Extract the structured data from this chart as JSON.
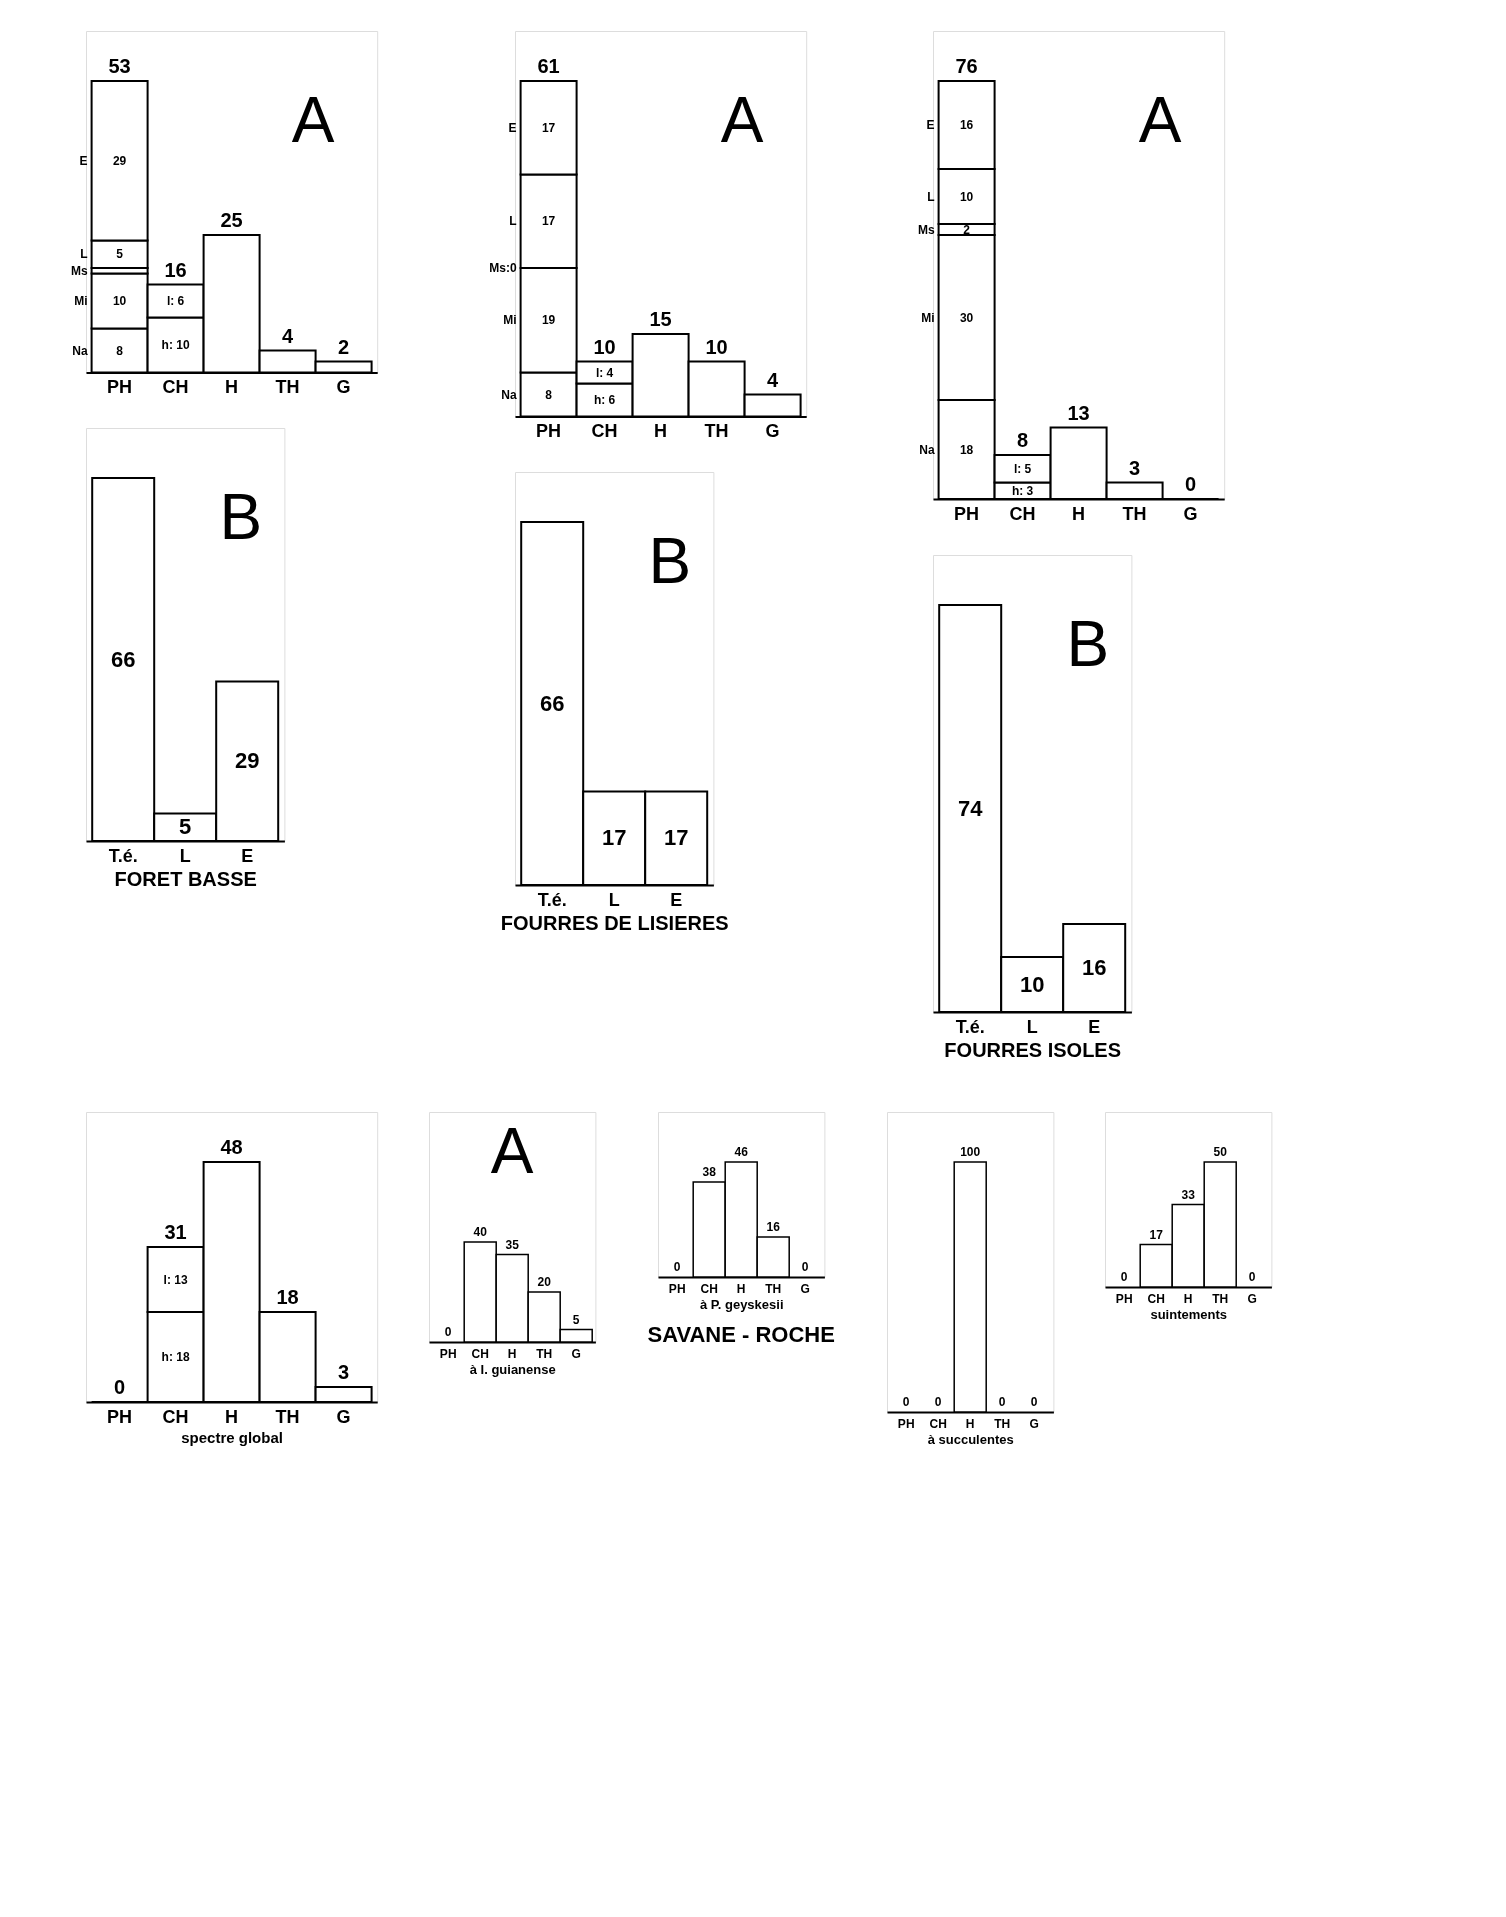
{
  "chart_data": [
    {
      "type": "bar",
      "stacked": true,
      "categories": [
        "PH",
        "CH",
        "H",
        "TH",
        "G"
      ],
      "annotations": [
        "A"
      ],
      "totals": [
        "53",
        "16",
        "25",
        "4",
        "2"
      ],
      "series": [
        {
          "name": "Na",
          "color": "#ffffff",
          "values": [
            8,
            null,
            null,
            null,
            null
          ],
          "value_labels": [
            "8",
            null,
            null,
            null,
            null
          ]
        },
        {
          "name": "Mi",
          "color": "#ffffff",
          "values": [
            10,
            null,
            null,
            null,
            null
          ],
          "value_labels": [
            "10",
            null,
            null,
            null,
            null
          ]
        },
        {
          "name": "Ms",
          "color": "#ffffff",
          "values": [
            1,
            null,
            null,
            null,
            null
          ]
        },
        {
          "name": "L",
          "color": "#ffffff",
          "values": [
            5,
            null,
            null,
            null,
            null
          ],
          "value_labels": [
            "5",
            null,
            null,
            null,
            null
          ]
        },
        {
          "name": "E",
          "color": "#ffffff",
          "values": [
            29,
            null,
            null,
            null,
            null
          ],
          "value_labels": [
            "29",
            null,
            null,
            null,
            null
          ]
        },
        {
          "color": "#ffffff",
          "values": [
            null,
            10,
            null,
            null,
            null
          ],
          "value_labels": [
            null,
            "h: 10",
            null,
            null,
            null
          ]
        },
        {
          "color": "#ffffff",
          "values": [
            null,
            6,
            null,
            null,
            null
          ],
          "value_labels": [
            null,
            "l: 6",
            null,
            null,
            null
          ]
        },
        {
          "color": "#ffffff",
          "values": [
            null,
            null,
            25,
            4,
            2
          ]
        }
      ]
    },
    {
      "type": "bar",
      "stacked": true,
      "categories": [
        "PH",
        "CH",
        "H",
        "TH",
        "G"
      ],
      "annotations": [
        "A"
      ],
      "totals": [
        "61",
        "10",
        "15",
        "10",
        "4"
      ],
      "series": [
        {
          "name": "Na",
          "color": "#ffffff",
          "values": [
            8,
            null,
            null,
            null,
            null
          ],
          "value_labels": [
            "8",
            null,
            null,
            null,
            null
          ]
        },
        {
          "name": "Mi",
          "color": "#ffffff",
          "values": [
            19,
            null,
            null,
            null,
            null
          ],
          "value_labels": [
            "19",
            null,
            null,
            null,
            null
          ]
        },
        {
          "name": "Ms:0",
          "values": [
            0,
            null,
            null,
            null,
            null
          ]
        },
        {
          "name": "L",
          "color": "#ffffff",
          "values": [
            17,
            null,
            null,
            null,
            null
          ],
          "value_labels": [
            "17",
            null,
            null,
            null,
            null
          ]
        },
        {
          "name": "E",
          "color": "#ffffff",
          "values": [
            17,
            null,
            null,
            null,
            null
          ],
          "value_labels": [
            "17",
            null,
            null,
            null,
            null
          ]
        },
        {
          "color": "#ffffff",
          "values": [
            null,
            6,
            null,
            null,
            null
          ],
          "value_labels": [
            null,
            "h: 6",
            null,
            null,
            null
          ]
        },
        {
          "color": "#ffffff",
          "values": [
            null,
            4,
            null,
            null,
            null
          ],
          "value_labels": [
            null,
            "l: 4",
            null,
            null,
            null
          ]
        },
        {
          "color": "#ffffff",
          "values": [
            null,
            null,
            15,
            10,
            4
          ]
        }
      ]
    },
    {
      "type": "bar",
      "stacked": true,
      "categories": [
        "PH",
        "CH",
        "H",
        "TH",
        "G"
      ],
      "annotations": [
        "A"
      ],
      "totals": [
        "76",
        "8",
        "13",
        "3",
        "0"
      ],
      "series": [
        {
          "name": "Na",
          "color": "#ffffff",
          "values": [
            18,
            null,
            null,
            null,
            null
          ],
          "value_labels": [
            "18",
            null,
            null,
            null,
            null
          ]
        },
        {
          "name": "Mi",
          "color": "#ffffff",
          "values": [
            30,
            null,
            null,
            null,
            null
          ],
          "value_labels": [
            "30",
            null,
            null,
            null,
            null
          ]
        },
        {
          "name": "Ms",
          "color": "#ffffff",
          "values": [
            2,
            null,
            null,
            null,
            null
          ],
          "value_labels": [
            "2",
            null,
            null,
            null,
            null
          ]
        },
        {
          "name": "L",
          "color": "#ffffff",
          "values": [
            10,
            null,
            null,
            null,
            null
          ],
          "value_labels": [
            "10",
            null,
            null,
            null,
            null
          ]
        },
        {
          "name": "E",
          "color": "#ffffff",
          "values": [
            16,
            null,
            null,
            null,
            null
          ],
          "value_labels": [
            "16",
            null,
            null,
            null,
            null
          ]
        },
        {
          "color": "#ffffff",
          "values": [
            null,
            3,
            null,
            null,
            null
          ],
          "value_labels": [
            null,
            "h: 3",
            null,
            null,
            null
          ]
        },
        {
          "color": "#ffffff",
          "values": [
            null,
            5,
            null,
            null,
            null
          ],
          "value_labels": [
            null,
            "l: 5",
            null,
            null,
            null
          ]
        },
        {
          "color": "#ffffff",
          "values": [
            null,
            null,
            13,
            3,
            0
          ]
        }
      ]
    },
    {
      "type": "bar",
      "categories": [
        "T.é.",
        "L",
        "E"
      ],
      "values": [
        66,
        5,
        29
      ],
      "colors": [
        "#ffffff",
        "#ffffff",
        "#ffffff"
      ],
      "data_labels": true,
      "xlabel": "FORET BASSE",
      "annotations": [
        "B"
      ]
    },
    {
      "type": "bar",
      "categories": [
        "T.é.",
        "L",
        "E"
      ],
      "values": [
        66,
        17,
        17
      ],
      "colors": [
        "#ffffff",
        "#ffffff",
        "#ffffff"
      ],
      "data_labels": true,
      "xlabel": "FOURRES DE LISIERES",
      "annotations": [
        "B"
      ]
    },
    {
      "type": "bar",
      "categories": [
        "T.é.",
        "L",
        "E"
      ],
      "values": [
        74,
        10,
        16
      ],
      "colors": [
        "#ffffff",
        "#ffffff",
        "#ffffff"
      ],
      "data_labels": true,
      "xlabel": "FOURRES ISOLES",
      "annotations": [
        "B"
      ]
    },
    {
      "type": "bar",
      "stacked": true,
      "categories": [
        "PH",
        "CH",
        "H",
        "TH",
        "G"
      ],
      "xlabel": "spectre global",
      "totals": [
        "0",
        "31",
        "48",
        "18",
        "3"
      ],
      "series": [
        {
          "color": "#ffffff",
          "values": [
            null,
            18,
            null,
            null,
            null
          ],
          "value_labels": [
            null,
            "h: 18",
            null,
            null,
            null
          ]
        },
        {
          "color": "#ffffff",
          "values": [
            null,
            13,
            null,
            null,
            null
          ],
          "value_labels": [
            null,
            "l: 13",
            null,
            null,
            null
          ]
        },
        {
          "color": "#ffffff",
          "values": [
            0,
            null,
            48,
            18,
            3
          ]
        }
      ]
    },
    {
      "type": "bar",
      "categories": [
        "PH",
        "CH",
        "H",
        "TH",
        "G"
      ],
      "values": [
        0,
        40,
        35,
        20,
        5
      ],
      "colors": [
        null,
        "#ffffff",
        "#ffffff",
        "#ffffff",
        "#ffffff"
      ],
      "data_labels": true,
      "xlabel": "à I. guianense",
      "annotations": [
        "A"
      ]
    },
    {
      "type": "bar",
      "categories": [
        "PH",
        "CH",
        "H",
        "TH",
        "G"
      ],
      "values": [
        0,
        38,
        46,
        16,
        0
      ],
      "colors": [
        null,
        "#ffffff",
        "#ffffff",
        "#ffffff",
        null
      ],
      "data_labels": true,
      "xlabel": "à P. geyskesii",
      "title": "SAVANE - ROCHE"
    },
    {
      "type": "bar",
      "categories": [
        "PH",
        "CH",
        "H",
        "TH",
        "G"
      ],
      "values": [
        0,
        0,
        100,
        0,
        0
      ],
      "colors": [
        null,
        null,
        "#ffffff",
        null,
        null
      ],
      "data_labels": true,
      "xlabel": "à succulentes"
    },
    {
      "type": "bar",
      "categories": [
        "PH",
        "CH",
        "H",
        "TH",
        "G"
      ],
      "values": [
        0,
        17,
        33,
        50,
        0
      ],
      "colors": [
        null,
        "#ffffff",
        "#ffffff",
        "#ffffff",
        null
      ],
      "data_labels": true,
      "xlabel": "suintements"
    }
  ]
}
